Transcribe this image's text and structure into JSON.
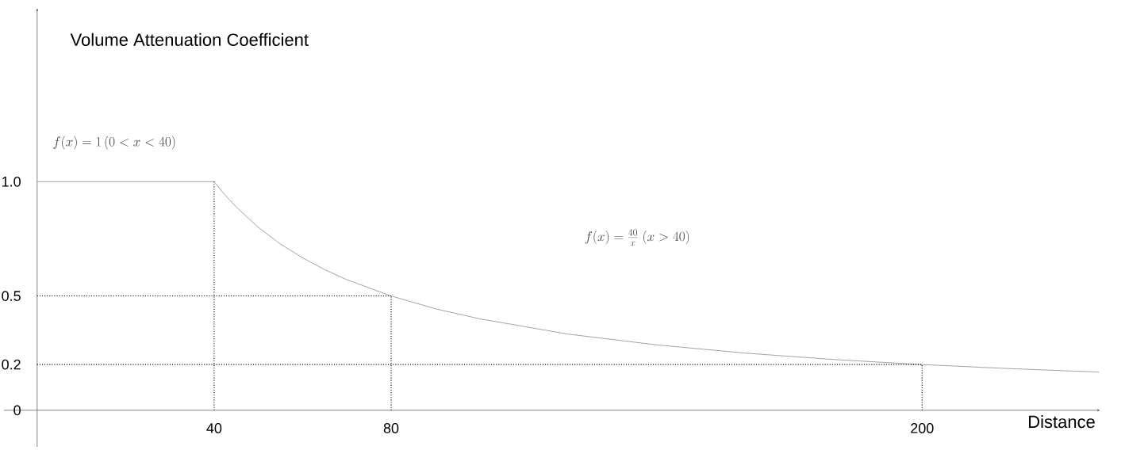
{
  "chart_data": {
    "type": "line",
    "xlabel": "Distance",
    "ylabel": "Volume Attenuation Coefficient",
    "x": [
      0,
      40,
      42,
      45,
      50,
      55,
      60,
      65,
      70,
      80,
      90,
      100,
      120,
      140,
      160,
      180,
      200,
      220,
      240
    ],
    "series": [
      {
        "color": "#999999",
        "values": [
          1,
          1,
          0.952,
          0.889,
          0.8,
          0.727,
          0.667,
          0.615,
          0.571,
          0.5,
          0.444,
          0.4,
          0.333,
          0.286,
          0.25,
          0.222,
          0.2,
          0.182,
          0.167
        ]
      }
    ],
    "xlim": [
      -7.5,
      240.3
    ],
    "ylim": [
      -0.16,
      1.76
    ],
    "xticks": [
      40,
      80,
      200
    ],
    "yticks": [
      {
        "value": 0,
        "label": "0"
      },
      0.2,
      0.5,
      {
        "value": 1,
        "label": "1.0"
      }
    ],
    "ref_lines": [
      {
        "axis": "x",
        "value": 40,
        "color": "#000000",
        "line_style": "dotted"
      },
      {
        "axis": "x",
        "value": 80,
        "color": "#000000",
        "line_style": "dotted"
      },
      {
        "axis": "x",
        "value": 200,
        "color": "#000000",
        "line_style": "dotted"
      },
      {
        "axis": "y",
        "value": 0.5,
        "color": "#000000",
        "line_style": "dotted"
      },
      {
        "axis": "y",
        "value": 0.2,
        "color": "#000000",
        "line_style": "dotted"
      }
    ],
    "annotations": [
      "f(x) = 1\\,(0 < x < 40)",
      "f(x) = \\frac{40}{x}\\;(x > 40)"
    ],
    "line_style": "solid",
    "marker": "none",
    "grid": false
  }
}
